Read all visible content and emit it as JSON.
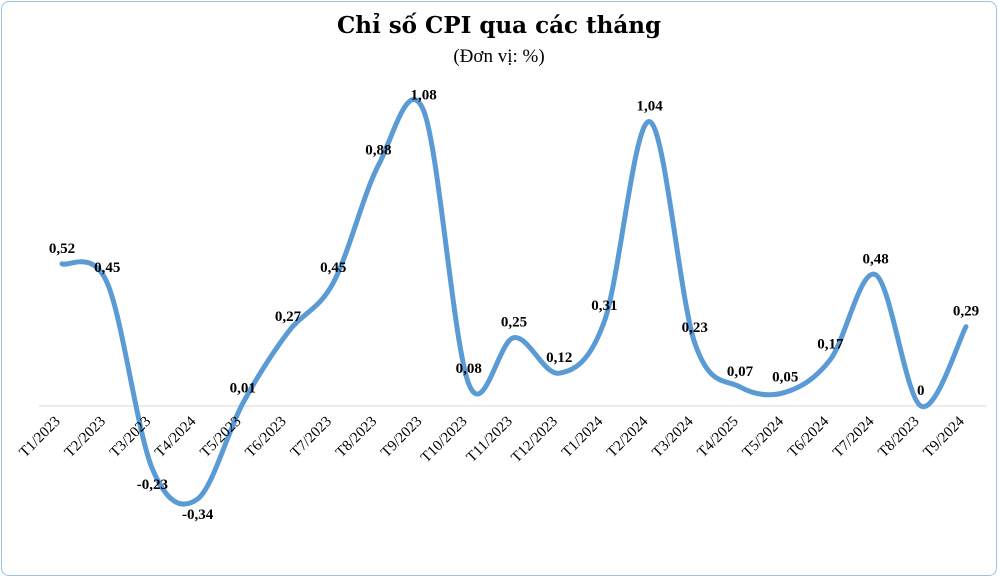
{
  "chart_data": {
    "type": "line",
    "title": "Chỉ số CPI qua các tháng",
    "subtitle": "(Đơn vị: %)",
    "categories": [
      "T1/2023",
      "T2/2023",
      "T3/2023",
      "T4/2024",
      "T5/2023",
      "T6/2023",
      "T7/2023",
      "T8/2023",
      "T9/2023",
      "T10/2023",
      "T11/2023",
      "T12/2023",
      "T1/2024",
      "T2/2024",
      "T3/2024",
      "T4/2025",
      "T5/2024",
      "T6/2024",
      "T7/2024",
      "T8/2023",
      "T9/2024"
    ],
    "series": [
      {
        "values": [
          0.52,
          0.45,
          -0.23,
          -0.34,
          0.01,
          0.27,
          0.45,
          0.88,
          1.08,
          0.08,
          0.25,
          0.12,
          0.31,
          1.04,
          0.23,
          0.07,
          0.05,
          0.17,
          0.48,
          0,
          0.29
        ],
        "labels": [
          "0,52",
          "0,45",
          "-0,23",
          "-0,34",
          "0,01",
          "0,27",
          "0,45",
          "0,88",
          "1,08",
          "0,08",
          "0,25",
          "0,12",
          "0,31",
          "1,04",
          "0,23",
          "0,07",
          "0,05",
          "0,17",
          "0,48",
          "0",
          "0,29"
        ]
      }
    ],
    "grid": false,
    "legend": "none",
    "line_color": "#5b9bd5"
  }
}
